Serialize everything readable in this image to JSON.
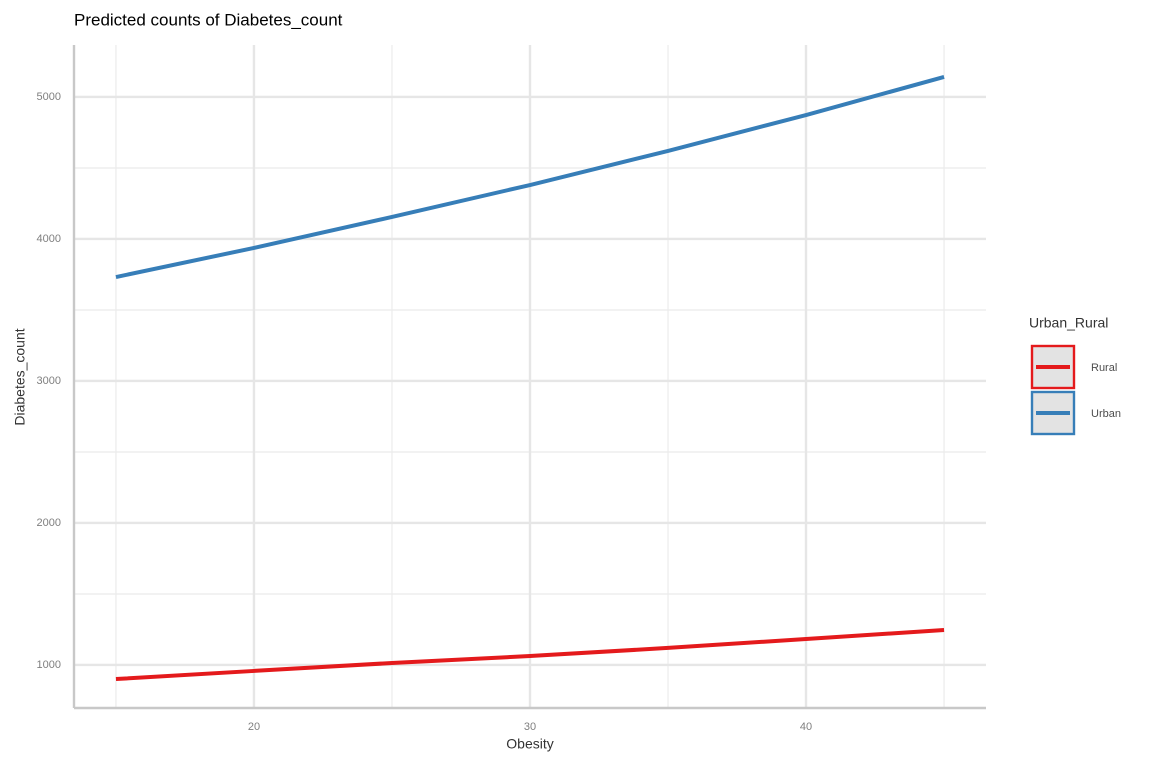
{
  "chart_data": {
    "type": "line",
    "title": "Predicted counts of Diabetes_count",
    "x_label": "Obesity",
    "y_label": "Diabetes_count",
    "legend_title": "Urban_Rural",
    "legend_position": "right",
    "grid": true,
    "x": [
      15,
      20,
      25,
      30,
      35,
      40,
      45
    ],
    "series": [
      {
        "name": "Rural",
        "color": "#e41a1c",
        "values": [
          901,
          958,
          1014,
          1063,
          1120,
          1183,
          1246
        ]
      },
      {
        "name": "Urban",
        "color": "#377eb8",
        "values": [
          3732,
          3937,
          4155,
          4380,
          4620,
          4873,
          5141
        ]
      }
    ],
    "xlim": [
      13.48,
      46.52
    ],
    "xticks": [
      20,
      30,
      40
    ],
    "x_minor_ticks": [
      15,
      25,
      35,
      45
    ],
    "ylim": [
      697,
      5366
    ],
    "yticks": [
      1000,
      2000,
      3000,
      4000,
      5000
    ],
    "y_minor_ticks": [
      1500,
      2500,
      3500,
      4500
    ]
  }
}
